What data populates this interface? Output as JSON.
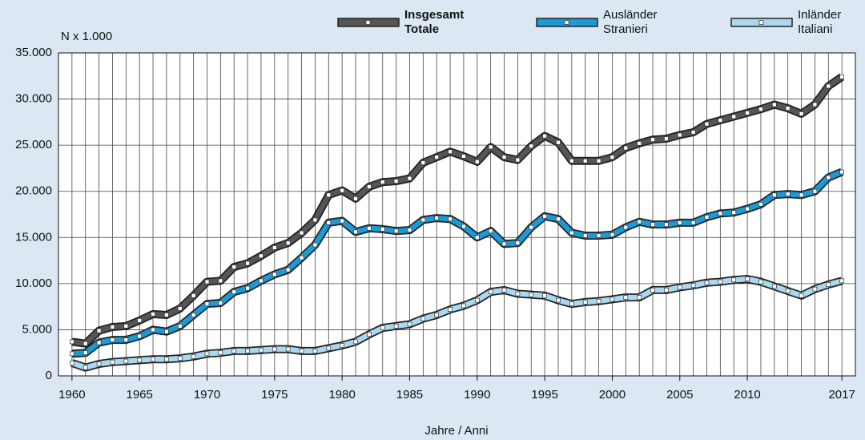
{
  "chart_data": {
    "type": "line",
    "y_label": "N x 1.000",
    "x_label": "Jahre / Anni",
    "x": [
      1960,
      1961,
      1962,
      1963,
      1964,
      1965,
      1966,
      1967,
      1968,
      1969,
      1970,
      1971,
      1972,
      1973,
      1974,
      1975,
      1976,
      1977,
      1978,
      1979,
      1980,
      1981,
      1982,
      1983,
      1984,
      1985,
      1986,
      1987,
      1988,
      1989,
      1990,
      1991,
      1992,
      1993,
      1994,
      1995,
      1996,
      1997,
      1998,
      1999,
      2000,
      2001,
      2002,
      2003,
      2004,
      2005,
      2006,
      2007,
      2008,
      2009,
      2010,
      2011,
      2012,
      2013,
      2014,
      2015,
      2016,
      2017
    ],
    "xlim": [
      1959,
      2018
    ],
    "xticks": [
      1960,
      1965,
      1970,
      1975,
      1980,
      1985,
      1990,
      1995,
      2000,
      2005,
      2010,
      2017
    ],
    "ylim": [
      0,
      35000
    ],
    "yticks": [
      0,
      {
        "value": 5000,
        "label": "5.000"
      },
      {
        "value": 10000,
        "label": "10.000"
      },
      {
        "value": 15000,
        "label": "15.000"
      },
      {
        "value": 20000,
        "label": "20.000"
      },
      {
        "value": 25000,
        "label": "25.000"
      },
      {
        "value": 30000,
        "label": "30.000"
      },
      {
        "value": 35000,
        "label": "35.000"
      }
    ],
    "grid": true,
    "series": [
      {
        "name": "Insgesamt Totale",
        "color": "#555555",
        "values": [
          3700,
          3500,
          4900,
          5300,
          5400,
          6000,
          6700,
          6600,
          7300,
          8700,
          10200,
          10300,
          11800,
          12200,
          13000,
          13900,
          14400,
          15500,
          16900,
          19600,
          20100,
          19200,
          20500,
          21000,
          21100,
          21400,
          23100,
          23700,
          24300,
          23800,
          23200,
          24800,
          23700,
          23400,
          24900,
          26000,
          25300,
          23300,
          23300,
          23300,
          23700,
          24700,
          25200,
          25600,
          25700,
          26100,
          26400,
          27300,
          27700,
          28100,
          28500,
          28900,
          29400,
          29000,
          28400,
          29400,
          31400,
          32400
        ]
      },
      {
        "name": "Ausländer Stranieri",
        "color": "#1a9ad6",
        "values": [
          2400,
          2500,
          3600,
          3900,
          3900,
          4300,
          5000,
          4800,
          5400,
          6600,
          7800,
          7900,
          9100,
          9500,
          10300,
          11000,
          11500,
          12800,
          14200,
          16600,
          16800,
          15600,
          16000,
          15900,
          15700,
          15800,
          16900,
          17100,
          17000,
          16200,
          15000,
          15700,
          14300,
          14400,
          16100,
          17300,
          17000,
          15500,
          15200,
          15200,
          15300,
          16100,
          16700,
          16400,
          16400,
          16600,
          16600,
          17200,
          17600,
          17700,
          18100,
          18600,
          19600,
          19700,
          19600,
          20000,
          21500,
          22100
        ]
      },
      {
        "name": "Inländer Italiani",
        "color": "#a9d8f0",
        "values": [
          1400,
          900,
          1300,
          1500,
          1600,
          1700,
          1800,
          1800,
          1900,
          2100,
          2400,
          2500,
          2700,
          2700,
          2800,
          2900,
          2900,
          2700,
          2700,
          3000,
          3300,
          3700,
          4500,
          5200,
          5400,
          5600,
          6200,
          6600,
          7200,
          7600,
          8200,
          9100,
          9300,
          8900,
          8800,
          8700,
          8200,
          7800,
          8000,
          8100,
          8300,
          8500,
          8500,
          9300,
          9300,
          9600,
          9800,
          10100,
          10200,
          10400,
          10500,
          10200,
          9700,
          9200,
          8700,
          9400,
          9900,
          10300
        ]
      }
    ]
  }
}
